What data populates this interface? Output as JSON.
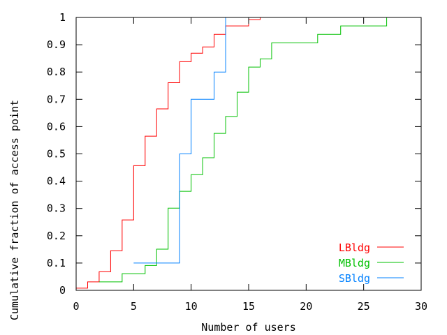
{
  "chart_data": {
    "type": "line",
    "subtype": "step-cdf",
    "title": "",
    "xlabel": "Number of users",
    "ylabel": "Cumulative fraction of access point",
    "xlim": [
      0,
      30
    ],
    "ylim": [
      0,
      1
    ],
    "xticks": [
      "0",
      "5",
      "10",
      "15",
      "20",
      "25",
      "30"
    ],
    "xtick_values": [
      0,
      5,
      10,
      15,
      20,
      25,
      30
    ],
    "yticks": [
      "0",
      "0.1",
      "0.2",
      "0.3",
      "0.4",
      "0.5",
      "0.6",
      "0.7",
      "0.8",
      "0.9",
      "1"
    ],
    "ytick_values": [
      0,
      0.1,
      0.2,
      0.3,
      0.4,
      0.5,
      0.6,
      0.7,
      0.8,
      0.9,
      1
    ],
    "grid": false,
    "legend_position": "bottom-right",
    "series": [
      {
        "name": "LBldg",
        "color": "#ff0000",
        "x": [
          0,
          1,
          2,
          3,
          4,
          5,
          6,
          7,
          8,
          9,
          10,
          11,
          12,
          13,
          15,
          16
        ],
        "y": [
          0.008,
          0.031,
          0.068,
          0.145,
          0.258,
          0.457,
          0.565,
          0.665,
          0.761,
          0.838,
          0.869,
          0.892,
          0.938,
          0.969,
          0.992,
          1.0
        ]
      },
      {
        "name": "MBldg",
        "color": "#00c000",
        "x": [
          2,
          4,
          6,
          7,
          8,
          9,
          10,
          11,
          12,
          13,
          14,
          15,
          16,
          17,
          21,
          23,
          27
        ],
        "y": [
          0.031,
          0.061,
          0.091,
          0.151,
          0.301,
          0.363,
          0.424,
          0.486,
          0.575,
          0.637,
          0.726,
          0.818,
          0.848,
          0.907,
          0.938,
          0.969,
          1.0
        ]
      },
      {
        "name": "SBldg",
        "color": "#0080ff",
        "x": [
          5,
          9,
          10,
          12,
          13
        ],
        "y": [
          0.1,
          0.5,
          0.7,
          0.8,
          1.0
        ]
      }
    ]
  }
}
